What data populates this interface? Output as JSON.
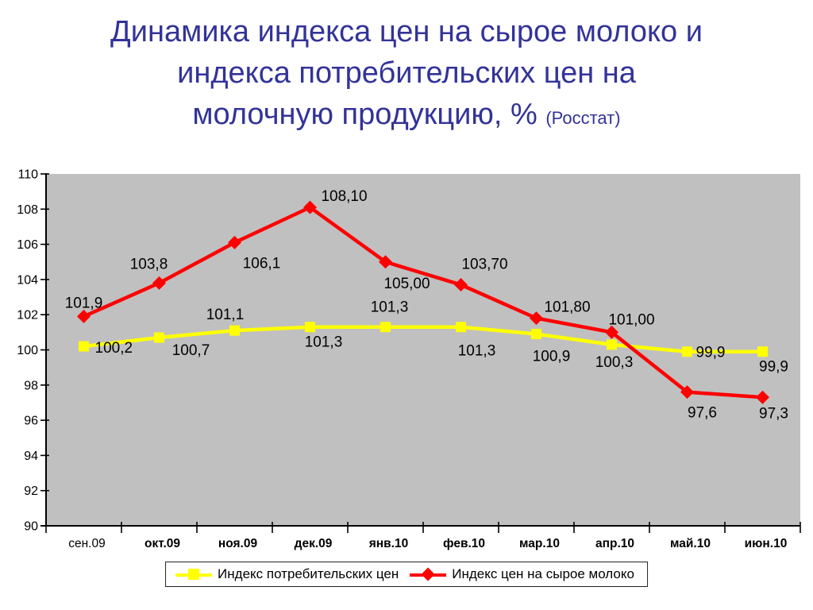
{
  "title": {
    "line1": "Динамика индекса цен на сырое молоко и",
    "line2": "индекса потребительских цен на",
    "line3": "молочную продукцию, %",
    "source": "(Росстат)"
  },
  "colors": {
    "title_text": "#333399",
    "plot_background": "#C0C0C0",
    "axis": "#000000",
    "consumer_price_series": "#FFFF00",
    "raw_milk_series": "#FF0000"
  },
  "legend": {
    "items": [
      {
        "label": "Индекс потребительских цен"
      },
      {
        "label": "Индекс цен на сырое молоко"
      }
    ]
  },
  "chart_data": {
    "type": "line",
    "title": "Динамика индекса цен на сырое молоко и индекса потребительских цен на молочную продукцию, % (Росстат)",
    "xlabel": "",
    "ylabel": "",
    "ylim": [
      90,
      110
    ],
    "ytick_step": 2,
    "grid": false,
    "legend_position": "bottom",
    "plot_bg": "#C0C0C0",
    "categories": [
      "сен.09",
      "окт.09",
      "ноя.09",
      "дек.09",
      "янв.10",
      "фев.10",
      "мар.10",
      "апр.10",
      "май.10",
      "июн.10"
    ],
    "series": [
      {
        "name": "Индекс потребительских цен",
        "color": "#FFFF00",
        "marker": "square",
        "values": [
          100.2,
          100.7,
          101.1,
          101.3,
          101.3,
          101.3,
          100.9,
          100.3,
          99.9,
          99.9
        ],
        "labels": [
          "100,2",
          "100,7",
          "101,1",
          "101,3",
          "101,3",
          "101,3",
          "100,9",
          "100,3",
          "99,9",
          "99,9"
        ]
      },
      {
        "name": "Индекс цен на сырое молоко",
        "color": "#FF0000",
        "marker": "diamond",
        "values": [
          101.9,
          103.8,
          106.1,
          108.1,
          105.0,
          103.7,
          101.8,
          101.0,
          97.6,
          97.3
        ],
        "labels": [
          "101,9",
          "103,8",
          "106,1",
          "108,10",
          "105,00",
          "103,70",
          "101,80",
          "101,00",
          "97,6",
          "97,3"
        ]
      }
    ]
  }
}
